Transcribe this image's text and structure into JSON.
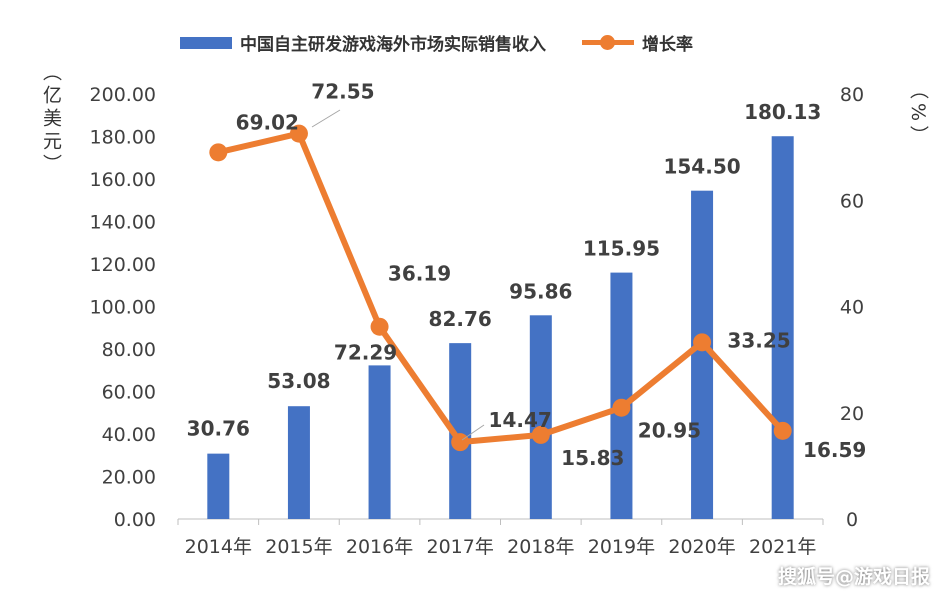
{
  "chart_data": {
    "type": "bar+line",
    "categories": [
      "2014年",
      "2015年",
      "2016年",
      "2017年",
      "2018年",
      "2019年",
      "2020年",
      "2021年"
    ],
    "series": [
      {
        "name": "中国自主研发游戏海外市场实际销售收入",
        "type": "bar",
        "axis": "left",
        "color": "#4472C4",
        "values": [
          30.76,
          53.08,
          72.29,
          82.76,
          95.86,
          115.95,
          154.5,
          180.13
        ],
        "labels": [
          "30.76",
          "53.08",
          "72.29",
          "82.76",
          "95.86",
          "115.95",
          "154.50",
          "180.13"
        ]
      },
      {
        "name": "增长率",
        "type": "line",
        "axis": "right",
        "color": "#ED7D31",
        "values": [
          69.02,
          72.55,
          36.19,
          14.47,
          15.83,
          20.95,
          33.25,
          16.59
        ],
        "labels": [
          "69.02",
          "72.55",
          "36.19",
          "14.47",
          "15.83",
          "20.95",
          "33.25",
          "16.59"
        ]
      }
    ],
    "y_left": {
      "label": "（亿美元）",
      "range": [
        0,
        200
      ],
      "ticks": [
        "0.00",
        "20.00",
        "40.00",
        "60.00",
        "80.00",
        "100.00",
        "120.00",
        "140.00",
        "160.00",
        "180.00",
        "200.00"
      ]
    },
    "y_right": {
      "label": "（%）",
      "range": [
        0,
        80
      ],
      "ticks": [
        "0",
        "20",
        "40",
        "60",
        "80"
      ]
    },
    "grid": false,
    "legend_position": "top"
  },
  "legend": {
    "bar_label": "中国自主研发游戏海外市场实际销售收入",
    "line_label": "增长率"
  },
  "axis_titles": {
    "left": "（亿美元）",
    "right": "（%）"
  },
  "watermark": "搜狐号@游戏日报"
}
